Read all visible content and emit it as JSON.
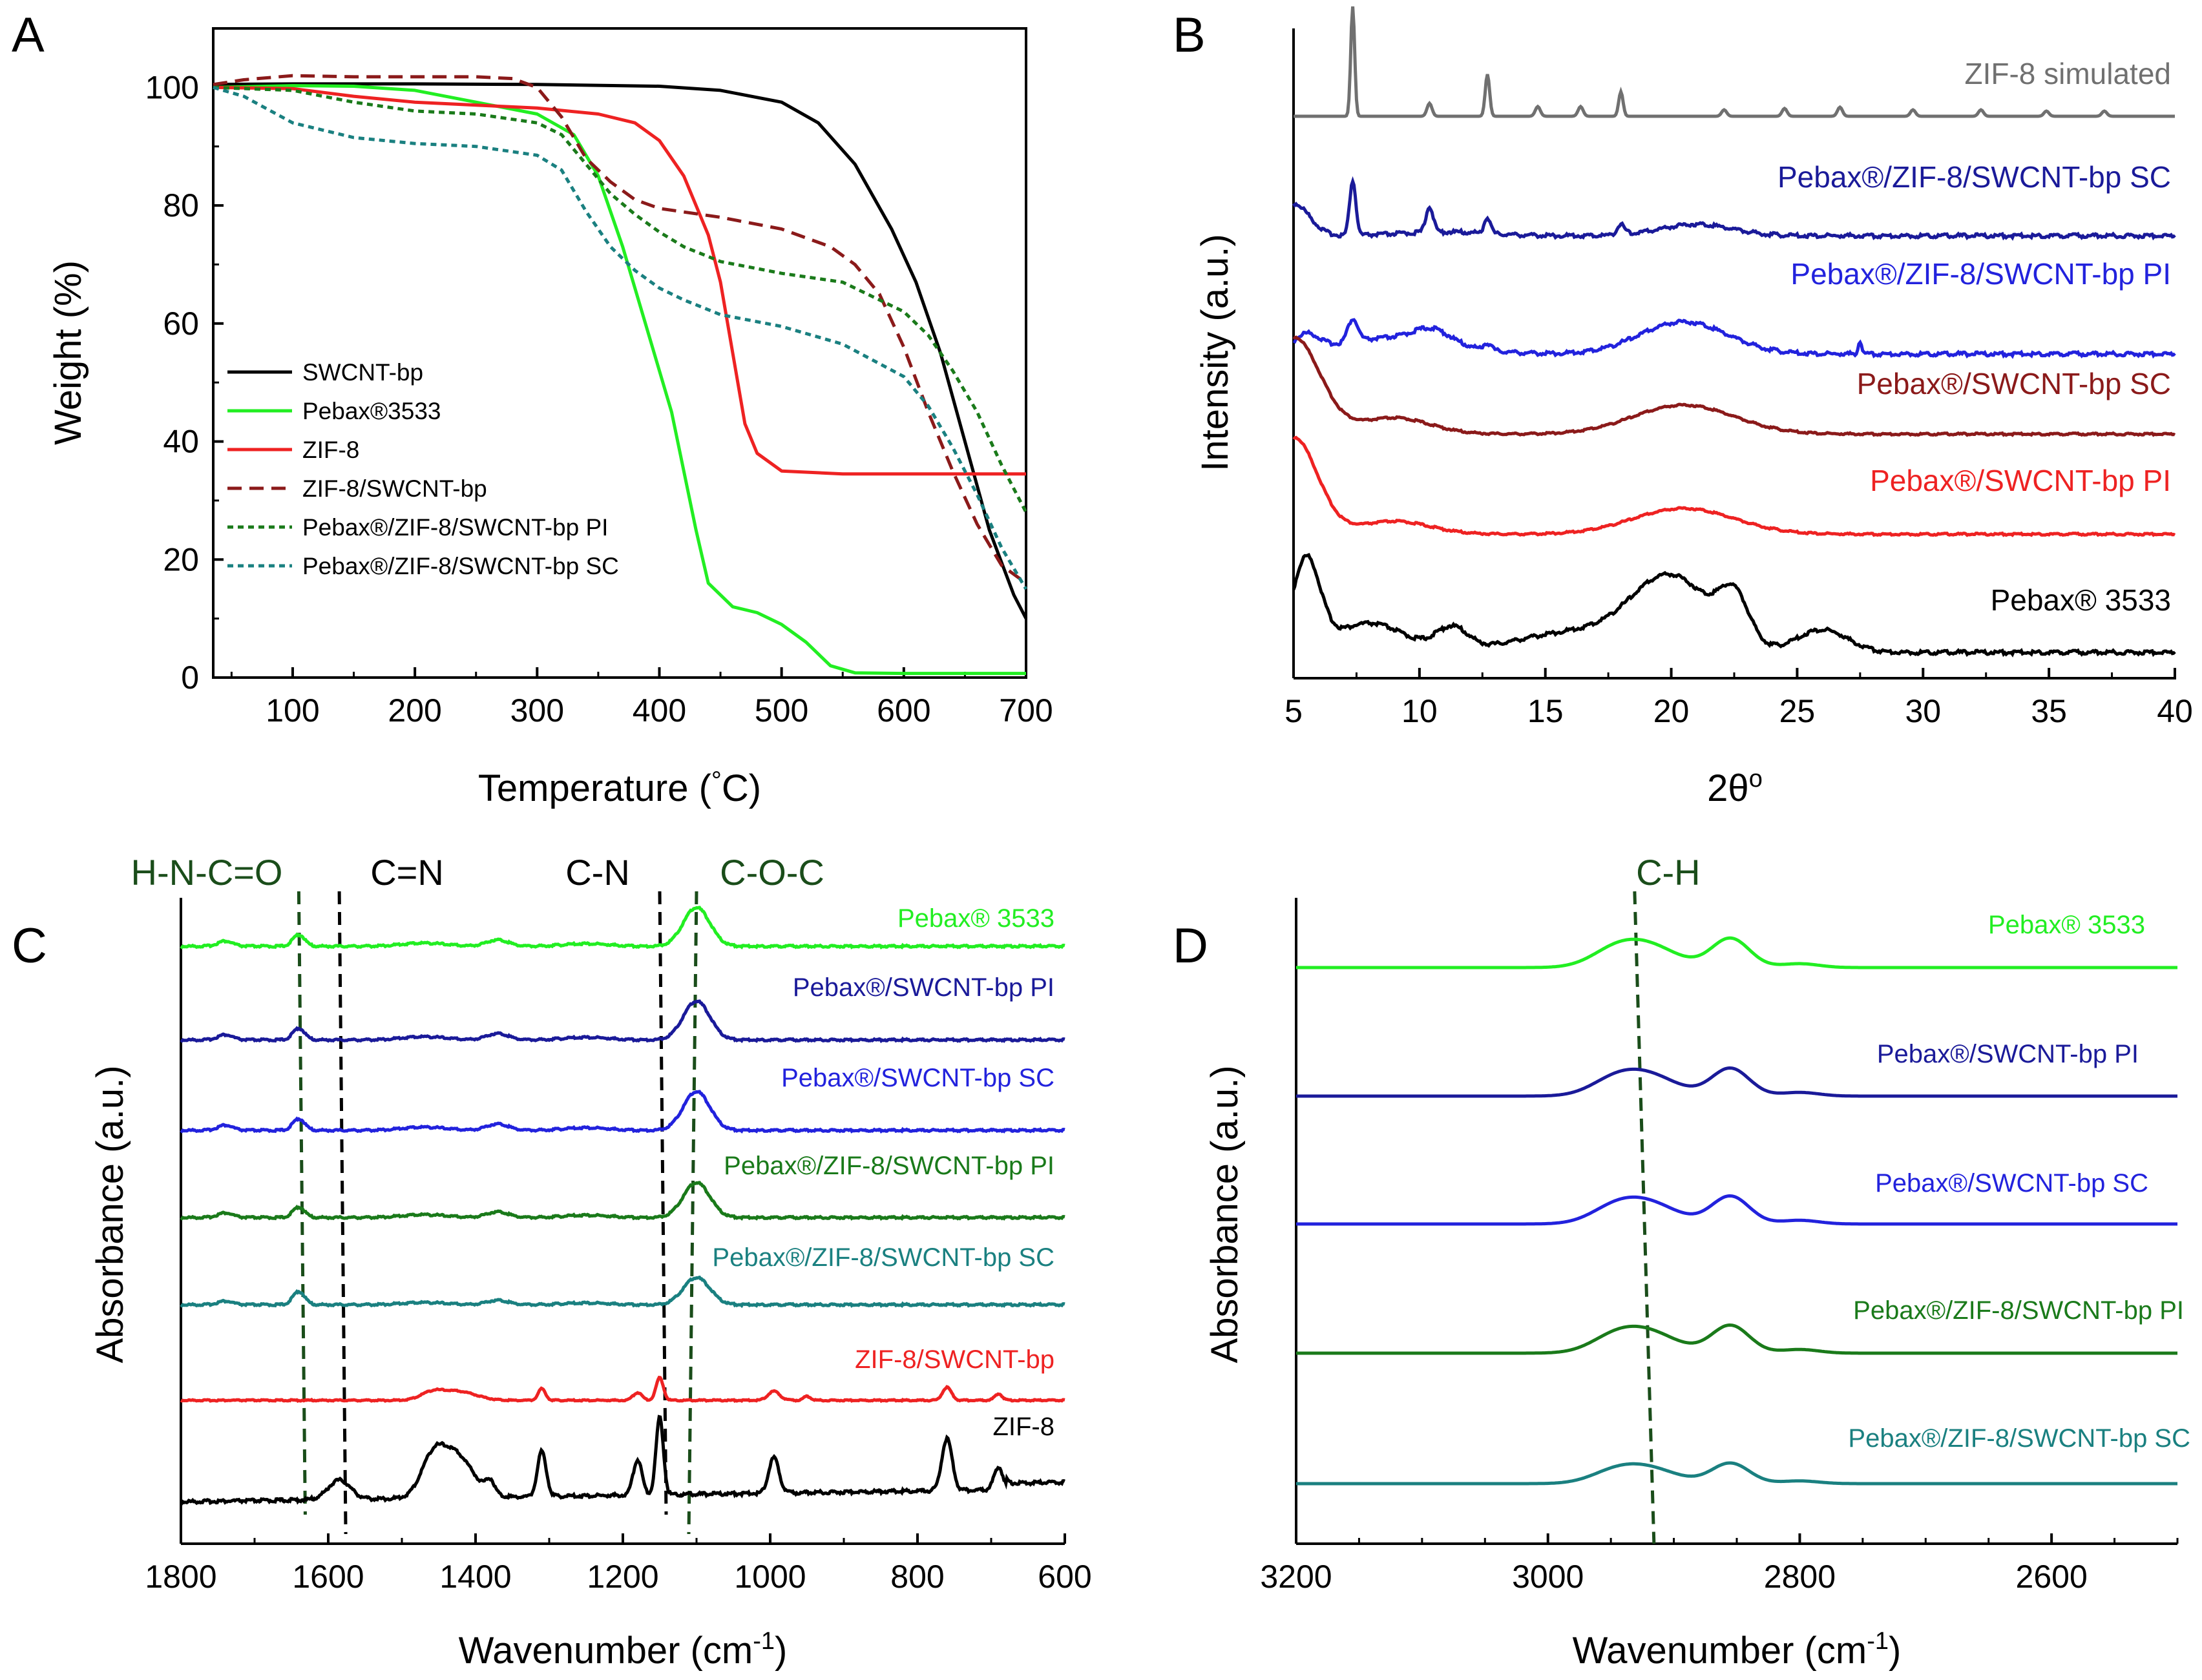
{
  "colors": {
    "black": "#000000",
    "green": "#22ee22",
    "red": "#ee2222",
    "darkred": "#8b1a1a",
    "darkgreen": "#1a7a1a",
    "teal": "#1a8080",
    "gray": "#707070",
    "navy": "#1a1a99",
    "blue": "#2222dd",
    "bandgreen": "#1a4d1a"
  },
  "chart_data": [
    {
      "panel": "A",
      "type": "line",
      "xlabel": "Temperature (°C)",
      "ylabel": "Weight (%)",
      "xlim": [
        35,
        700
      ],
      "ylim": [
        0,
        110
      ],
      "xticks": [
        100,
        200,
        300,
        400,
        500,
        600,
        700
      ],
      "yticks": [
        0,
        20,
        40,
        60,
        80,
        100
      ],
      "legend_position": "center-left",
      "series": [
        {
          "name": "SWCNT-bp",
          "color": "black",
          "dash": "solid",
          "x": [
            35,
            100,
            200,
            300,
            400,
            450,
            500,
            530,
            560,
            590,
            610,
            630,
            650,
            670,
            690,
            700
          ],
          "y": [
            100.5,
            100.6,
            100.6,
            100.5,
            100.2,
            99.5,
            97.5,
            94,
            87,
            76,
            67,
            55,
            40,
            25,
            14,
            10
          ]
        },
        {
          "name": "Pebax®3533",
          "color": "green",
          "dash": "solid",
          "x": [
            35,
            100,
            150,
            200,
            250,
            300,
            330,
            350,
            370,
            390,
            410,
            420,
            430,
            440,
            460,
            480,
            500,
            520,
            540,
            560,
            600,
            700
          ],
          "y": [
            100,
            100.3,
            100.2,
            99.5,
            97.5,
            95.5,
            92,
            85,
            73,
            59,
            45,
            35,
            25,
            16,
            12,
            11,
            9,
            6,
            2,
            0.8,
            0.7,
            0.7
          ]
        },
        {
          "name": "ZIF-8",
          "color": "red",
          "dash": "solid",
          "x": [
            35,
            100,
            150,
            200,
            250,
            300,
            350,
            380,
            400,
            420,
            440,
            450,
            460,
            470,
            480,
            500,
            550,
            700
          ],
          "y": [
            100,
            99.8,
            98.5,
            97.5,
            97,
            96.5,
            95.5,
            94,
            91,
            85,
            75,
            67,
            55,
            43,
            38,
            35,
            34.5,
            34.5
          ]
        },
        {
          "name": "ZIF-8/SWCNT-bp",
          "color": "darkred",
          "dash": "dashed",
          "x": [
            35,
            60,
            100,
            150,
            200,
            250,
            280,
            300,
            320,
            340,
            360,
            380,
            400,
            450,
            500,
            540,
            560,
            580,
            600,
            620,
            640,
            660,
            680,
            700
          ],
          "y": [
            100.5,
            101.3,
            102,
            101.8,
            101.8,
            101.8,
            101.5,
            100,
            95,
            88,
            84,
            81,
            79.5,
            78,
            76,
            73,
            70,
            65,
            56,
            45,
            35,
            26,
            19,
            16
          ]
        },
        {
          "name": "Pebax®/ZIF-8/SWCNT-bp PI",
          "color": "darkgreen",
          "dash": "dotted",
          "x": [
            35,
            100,
            150,
            200,
            250,
            300,
            320,
            340,
            360,
            380,
            400,
            420,
            450,
            500,
            550,
            600,
            620,
            640,
            660,
            680,
            700
          ],
          "y": [
            100,
            99.5,
            97.5,
            96,
            95.5,
            94,
            92,
            87,
            82,
            78.5,
            75.5,
            73,
            70.5,
            68.5,
            67,
            62,
            58,
            52,
            45,
            36,
            28
          ]
        },
        {
          "name": "Pebax®/ZIF-8/SWCNT-bp SC",
          "color": "teal",
          "dash": "dotted",
          "x": [
            35,
            60,
            100,
            150,
            200,
            250,
            300,
            320,
            340,
            360,
            380,
            400,
            420,
            450,
            500,
            550,
            600,
            620,
            640,
            660,
            680,
            700
          ],
          "y": [
            100,
            98.5,
            94,
            91.5,
            90.5,
            90,
            88.5,
            86,
            79,
            73,
            69,
            66,
            64,
            61.5,
            59.5,
            56.5,
            51,
            46,
            39,
            31,
            22,
            15
          ]
        }
      ]
    },
    {
      "panel": "B",
      "type": "line",
      "xlabel": "2θ°",
      "ylabel": "Intensity (a.u.)",
      "xlim": [
        5,
        40
      ],
      "xticks": [
        5,
        10,
        15,
        20,
        25,
        30,
        35,
        40
      ],
      "series": [
        {
          "name": "ZIF-8 simulated",
          "color": "gray"
        },
        {
          "name": "Pebax®/ZIF-8/SWCNT-bp SC",
          "color": "navy"
        },
        {
          "name": "Pebax®/ZIF-8/SWCNT-bp PI",
          "color": "blue"
        },
        {
          "name": "Pebax®/SWCNT-bp SC",
          "color": "darkred"
        },
        {
          "name": "Pebax®/SWCNT-bp PI",
          "color": "red"
        },
        {
          "name": "Pebax® 3533",
          "color": "black"
        }
      ]
    },
    {
      "panel": "C",
      "type": "line",
      "xlabel": "Wavenumber (cm-1)",
      "ylabel": "Absorbance (a.u.)",
      "xlim": [
        1800,
        600
      ],
      "xticks": [
        1800,
        1600,
        1400,
        1200,
        1000,
        800,
        600
      ],
      "bands": [
        {
          "label": "H-N-C=O",
          "wavenumber": 1640,
          "color": "bandgreen"
        },
        {
          "label": "C=N",
          "wavenumber": 1585,
          "color": "black"
        },
        {
          "label": "C-N",
          "wavenumber": 1150,
          "color": "black"
        },
        {
          "label": "C-O-C",
          "wavenumber": 1100,
          "color": "bandgreen"
        }
      ],
      "series": [
        {
          "name": "Pebax® 3533",
          "color": "green"
        },
        {
          "name": "Pebax®/SWCNT-bp PI",
          "color": "navy"
        },
        {
          "name": "Pebax®/SWCNT-bp SC",
          "color": "blue"
        },
        {
          "name": "Pebax®/ZIF-8/SWCNT-bp PI",
          "color": "darkgreen"
        },
        {
          "name": "Pebax®/ZIF-8/SWCNT-bp SC",
          "color": "teal"
        },
        {
          "name": "ZIF-8/SWCNT-bp",
          "color": "red"
        },
        {
          "name": "ZIF-8",
          "color": "black"
        }
      ]
    },
    {
      "panel": "D",
      "type": "line",
      "xlabel": "Wavenumber (cm-1)",
      "ylabel": "Absorbance (a.u.)",
      "xlim": [
        3200,
        2500
      ],
      "xticks": [
        3200,
        3000,
        2800,
        2600
      ],
      "bands": [
        {
          "label": "C-H",
          "wavenumber": 2925,
          "color": "bandgreen"
        }
      ],
      "series": [
        {
          "name": "Pebax® 3533",
          "color": "green"
        },
        {
          "name": "Pebax®/SWCNT-bp PI",
          "color": "navy"
        },
        {
          "name": "Pebax®/SWCNT-bp SC",
          "color": "blue"
        },
        {
          "name": "Pebax®/ZIF-8/SWCNT-bp PI",
          "color": "darkgreen"
        },
        {
          "name": "Pebax®/ZIF-8/SWCNT-bp SC",
          "color": "teal"
        }
      ]
    }
  ],
  "labels": {
    "panelA": "A",
    "panelB": "B",
    "panelC": "C",
    "panelD": "D",
    "a_xlabel": "Temperature (",
    "a_xdeg": "°",
    "a_xC": "C)",
    "a_ylabel": "Weight (%)",
    "b_xlabel": "2θ",
    "b_xsup": "o",
    "b_ylabel": "Intensity (a.u.)",
    "c_xlabel": "Wavenumber (cm",
    "c_xsup": "-1",
    "c_xclose": ")",
    "c_ylabel": "Absorbance (a.u.)",
    "d_xlabel": "Wavenumber (cm",
    "d_xsup": "-1",
    "d_xclose": ")",
    "d_ylabel": "Absorbance (a.u.)"
  }
}
